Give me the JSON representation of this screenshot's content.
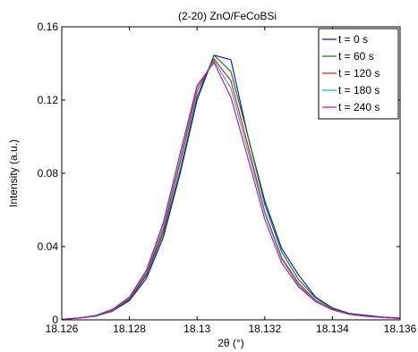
{
  "chart_data": {
    "type": "line",
    "title": "(2-20) ZnO/FeCoBSi",
    "xlabel": "2θ (°)",
    "ylabel": "Intensity (a.u.)",
    "xlim": [
      18.126,
      18.136
    ],
    "ylim": [
      0,
      0.16
    ],
    "xticks": [
      18.126,
      18.128,
      18.13,
      18.132,
      18.134,
      18.136
    ],
    "xtick_labels": [
      "18.126",
      "18.128",
      "18.13",
      "18.132",
      "18.134",
      "18.136"
    ],
    "yticks": [
      0,
      0.04,
      0.08,
      0.12,
      0.16
    ],
    "ytick_labels": [
      "0",
      "0.04",
      "0.08",
      "0.12",
      "0.16"
    ],
    "legend_position": "top-right",
    "grid": false,
    "x": [
      18.126,
      18.1265,
      18.127,
      18.1275,
      18.128,
      18.1285,
      18.129,
      18.1295,
      18.13,
      18.1305,
      18.131,
      18.1315,
      18.132,
      18.1325,
      18.133,
      18.1335,
      18.134,
      18.1345,
      18.135,
      18.1355,
      18.136
    ],
    "series": [
      {
        "name": "t = 0 s",
        "color": "#0000ff",
        "values": [
          0.0003,
          0.001,
          0.002,
          0.0048,
          0.0105,
          0.0225,
          0.045,
          0.08,
          0.12,
          0.1445,
          0.142,
          0.1005,
          0.065,
          0.039,
          0.0245,
          0.0125,
          0.0065,
          0.0035,
          0.0025,
          0.0015,
          0.001
        ]
      },
      {
        "name": "t = 60 s",
        "color": "#008000",
        "values": [
          0.0003,
          0.001,
          0.002,
          0.005,
          0.011,
          0.024,
          0.047,
          0.082,
          0.122,
          0.1445,
          0.1355,
          0.1005,
          0.063,
          0.037,
          0.022,
          0.012,
          0.0062,
          0.0033,
          0.0022,
          0.0014,
          0.0009
        ]
      },
      {
        "name": "t = 120 s",
        "color": "#ff0000",
        "values": [
          0.0003,
          0.001,
          0.0022,
          0.0052,
          0.0115,
          0.025,
          0.049,
          0.086,
          0.125,
          0.1425,
          0.1305,
          0.0955,
          0.059,
          0.034,
          0.02,
          0.0108,
          0.0058,
          0.0032,
          0.0021,
          0.0013,
          0.0009
        ]
      },
      {
        "name": "t = 180 s",
        "color": "#00bfbf",
        "values": [
          0.0003,
          0.001,
          0.0022,
          0.0055,
          0.012,
          0.026,
          0.051,
          0.088,
          0.127,
          0.1415,
          0.1265,
          0.0925,
          0.058,
          0.033,
          0.019,
          0.0105,
          0.0056,
          0.0031,
          0.002,
          0.0013,
          0.0008
        ]
      },
      {
        "name": "t = 240 s",
        "color": "#bf00bf",
        "values": [
          0.0003,
          0.001,
          0.0024,
          0.0058,
          0.0125,
          0.027,
          0.053,
          0.091,
          0.128,
          0.1405,
          0.1215,
          0.0885,
          0.055,
          0.031,
          0.018,
          0.01,
          0.0054,
          0.003,
          0.0019,
          0.0012,
          0.0008
        ]
      }
    ]
  }
}
